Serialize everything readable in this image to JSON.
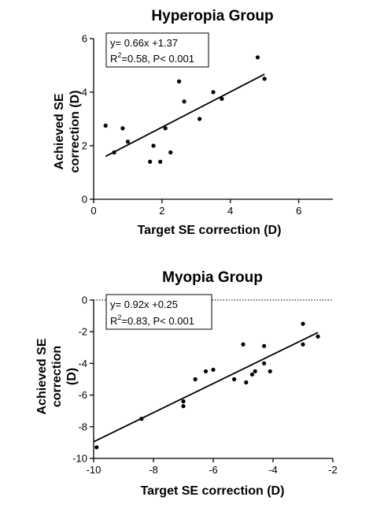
{
  "chart_data": [
    {
      "type": "scatter",
      "title": "Hyperopia Group",
      "xlabel": "Target SE correction (D)",
      "ylabel_lines": [
        "Achieved SE",
        "correction (D)"
      ],
      "xlim": [
        0,
        7
      ],
      "ylim": [
        0,
        6
      ],
      "xticks": [
        0,
        2,
        4,
        6
      ],
      "yticks": [
        0,
        2,
        4,
        6
      ],
      "grid": false,
      "annotation": {
        "line1": "y= 0.66x +1.37",
        "r2_prefix": "R",
        "r2_sup": "2",
        "r2_rest": "=0.58, P< 0.001",
        "position": "top-left"
      },
      "fit": {
        "slope": 0.66,
        "intercept": 1.37,
        "x_range": [
          0.35,
          5.0
        ]
      },
      "points": [
        {
          "x": 0.35,
          "y": 2.75
        },
        {
          "x": 0.6,
          "y": 1.75
        },
        {
          "x": 0.85,
          "y": 2.65
        },
        {
          "x": 1.0,
          "y": 2.15
        },
        {
          "x": 1.65,
          "y": 1.4
        },
        {
          "x": 1.75,
          "y": 2.0
        },
        {
          "x": 1.95,
          "y": 1.4
        },
        {
          "x": 2.1,
          "y": 2.65
        },
        {
          "x": 2.25,
          "y": 1.75
        },
        {
          "x": 2.5,
          "y": 4.4
        },
        {
          "x": 2.65,
          "y": 3.65
        },
        {
          "x": 3.1,
          "y": 3.0
        },
        {
          "x": 3.5,
          "y": 4.0
        },
        {
          "x": 3.75,
          "y": 3.75
        },
        {
          "x": 4.8,
          "y": 5.3
        },
        {
          "x": 5.0,
          "y": 4.5
        }
      ]
    },
    {
      "type": "scatter",
      "title": "Myopia Group",
      "xlabel": "Target SE correction (D)",
      "ylabel_lines": [
        "Achieved SE",
        "correction",
        "(D)"
      ],
      "xlim": [
        -10,
        -2
      ],
      "ylim": [
        -10,
        0
      ],
      "xticks": [
        -10,
        -8,
        -6,
        -4,
        -2
      ],
      "yticks": [
        -10,
        -8,
        -6,
        -4,
        -2,
        0
      ],
      "grid": false,
      "reference_line_y": 0,
      "annotation": {
        "line1": "y= 0.92x +0.25",
        "r2_prefix": "R",
        "r2_sup": "2",
        "r2_rest": "=0.83, P< 0.001",
        "position": "top-left"
      },
      "fit": {
        "slope": 0.92,
        "intercept": 0.25,
        "x_range": [
          -10.0,
          -2.5
        ]
      },
      "points": [
        {
          "x": -9.9,
          "y": -9.3
        },
        {
          "x": -8.4,
          "y": -7.5
        },
        {
          "x": -7.0,
          "y": -6.4
        },
        {
          "x": -7.0,
          "y": -6.7
        },
        {
          "x": -6.6,
          "y": -5.0
        },
        {
          "x": -6.25,
          "y": -4.5
        },
        {
          "x": -6.0,
          "y": -4.4
        },
        {
          "x": -5.3,
          "y": -5.0
        },
        {
          "x": -5.0,
          "y": -2.8
        },
        {
          "x": -4.9,
          "y": -5.2
        },
        {
          "x": -4.7,
          "y": -4.7
        },
        {
          "x": -4.6,
          "y": -4.5
        },
        {
          "x": -4.3,
          "y": -4.0
        },
        {
          "x": -4.3,
          "y": -2.9
        },
        {
          "x": -4.1,
          "y": -4.5
        },
        {
          "x": -3.0,
          "y": -2.8
        },
        {
          "x": -3.0,
          "y": -1.5
        },
        {
          "x": -2.5,
          "y": -2.3
        }
      ]
    }
  ]
}
